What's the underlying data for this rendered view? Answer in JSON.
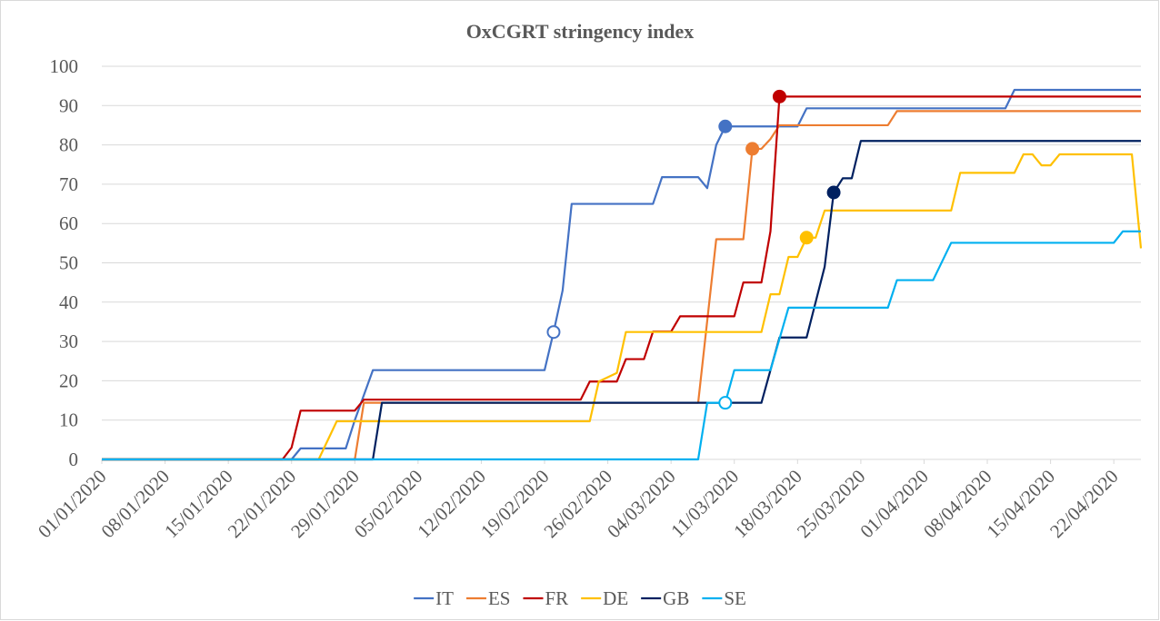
{
  "chart_data": {
    "type": "line",
    "title": "OxCGRT stringency index",
    "xlim": [
      "01/01/2020",
      "25/04/2020"
    ],
    "xticks": [
      "01/01/2020",
      "08/01/2020",
      "15/01/2020",
      "22/01/2020",
      "29/01/2020",
      "05/02/2020",
      "12/02/2020",
      "19/02/2020",
      "26/02/2020",
      "04/03/2020",
      "11/03/2020",
      "18/03/2020",
      "25/03/2020",
      "01/04/2020",
      "08/04/2020",
      "15/04/2020",
      "22/04/2020"
    ],
    "ylim": [
      0,
      100
    ],
    "yticks": [
      0,
      10,
      20,
      30,
      40,
      50,
      60,
      70,
      80,
      90,
      100
    ],
    "grid": true,
    "legend": "bottom",
    "series": [
      {
        "name": "IT",
        "color": "#4472c4",
        "x": [
          "01/01/2020",
          "22/01/2020",
          "23/01/2020",
          "28/01/2020",
          "29/01/2020",
          "31/01/2020",
          "19/02/2020",
          "20/02/2020",
          "21/02/2020",
          "22/02/2020",
          "02/03/2020",
          "03/03/2020",
          "07/03/2020",
          "08/03/2020",
          "09/03/2020",
          "10/03/2020",
          "18/03/2020",
          "19/03/2020",
          "10/04/2020",
          "11/04/2020",
          "25/04/2020"
        ],
        "values": [
          0,
          0,
          2.8,
          2.8,
          10,
          22.7,
          22.7,
          32.4,
          43,
          65,
          65,
          71.8,
          71.8,
          69,
          80,
          84.7,
          84.7,
          89.3,
          89.3,
          94,
          94
        ]
      },
      {
        "name": "ES",
        "color": "#ed7d31",
        "x": [
          "01/01/2020",
          "29/01/2020",
          "30/01/2020",
          "07/03/2020",
          "09/03/2020",
          "12/03/2020",
          "13/03/2020",
          "14/03/2020",
          "15/03/2020",
          "16/03/2020",
          "28/03/2020",
          "29/03/2020",
          "25/04/2020"
        ],
        "values": [
          0,
          0,
          14.4,
          14.4,
          56,
          56,
          79,
          79,
          81.5,
          85,
          85,
          88.6,
          88.6
        ]
      },
      {
        "name": "FR",
        "color": "#c00000",
        "x": [
          "01/01/2020",
          "21/01/2020",
          "22/01/2020",
          "23/01/2020",
          "29/01/2020",
          "30/01/2020",
          "23/02/2020",
          "24/02/2020",
          "27/02/2020",
          "28/02/2020",
          "01/03/2020",
          "02/03/2020",
          "04/03/2020",
          "05/03/2020",
          "11/03/2020",
          "12/03/2020",
          "14/03/2020",
          "15/03/2020",
          "16/03/2020",
          "25/04/2020"
        ],
        "values": [
          0,
          0,
          3,
          12.4,
          12.4,
          15.2,
          15.2,
          19.8,
          19.8,
          25.5,
          25.5,
          32.5,
          32.5,
          36.4,
          36.4,
          45,
          45,
          58,
          92.3,
          92.3
        ]
      },
      {
        "name": "DE",
        "color": "#ffc000",
        "x": [
          "01/01/2020",
          "25/01/2020",
          "27/01/2020",
          "24/02/2020",
          "25/02/2020",
          "27/02/2020",
          "28/02/2020",
          "14/03/2020",
          "15/03/2020",
          "16/03/2020",
          "17/03/2020",
          "18/03/2020",
          "19/03/2020",
          "20/03/2020",
          "21/03/2020",
          "04/04/2020",
          "05/04/2020",
          "11/04/2020",
          "12/04/2020",
          "13/04/2020",
          "14/04/2020",
          "15/04/2020",
          "16/04/2020",
          "24/04/2020",
          "25/04/2020"
        ],
        "values": [
          0,
          0,
          9.7,
          9.7,
          19.8,
          22,
          32.4,
          32.4,
          42,
          42,
          51.5,
          51.5,
          56.4,
          56.4,
          63.3,
          63.3,
          72.9,
          72.9,
          77.6,
          77.6,
          74.8,
          74.8,
          77.6,
          77.6,
          53.7
        ]
      },
      {
        "name": "GB",
        "color": "#002060",
        "x": [
          "01/01/2020",
          "31/01/2020",
          "01/02/2020",
          "14/03/2020",
          "16/03/2020",
          "19/03/2020",
          "21/03/2020",
          "22/03/2020",
          "23/03/2020",
          "24/03/2020",
          "25/03/2020",
          "25/04/2020"
        ],
        "values": [
          0,
          0,
          14.4,
          14.4,
          31,
          31,
          49,
          67.9,
          71.5,
          71.5,
          81,
          81
        ]
      },
      {
        "name": "SE",
        "color": "#00b0f0",
        "x": [
          "01/01/2020",
          "07/03/2020",
          "08/03/2020",
          "10/03/2020",
          "11/03/2020",
          "15/03/2020",
          "17/03/2020",
          "28/03/2020",
          "29/03/2020",
          "02/04/2020",
          "04/04/2020",
          "22/04/2020",
          "23/04/2020",
          "25/04/2020"
        ],
        "values": [
          0,
          0,
          14.4,
          14.4,
          22.7,
          22.7,
          38.6,
          38.6,
          45.6,
          45.6,
          55.1,
          55.1,
          58,
          58
        ]
      }
    ],
    "markers": [
      {
        "x": "20/02/2020",
        "value": 32.4,
        "color": "#4472c4",
        "filled": false
      },
      {
        "x": "10/03/2020",
        "value": 14.4,
        "color": "#00b0f0",
        "filled": false
      },
      {
        "x": "10/03/2020",
        "value": 84.7,
        "color": "#4472c4",
        "filled": true
      },
      {
        "x": "13/03/2020",
        "value": 79,
        "color": "#ed7d31",
        "filled": true
      },
      {
        "x": "16/03/2020",
        "value": 92.3,
        "color": "#c00000",
        "filled": true
      },
      {
        "x": "19/03/2020",
        "value": 56.4,
        "color": "#ffc000",
        "filled": true
      },
      {
        "x": "22/03/2020",
        "value": 67.9,
        "color": "#002060",
        "filled": true
      }
    ]
  }
}
